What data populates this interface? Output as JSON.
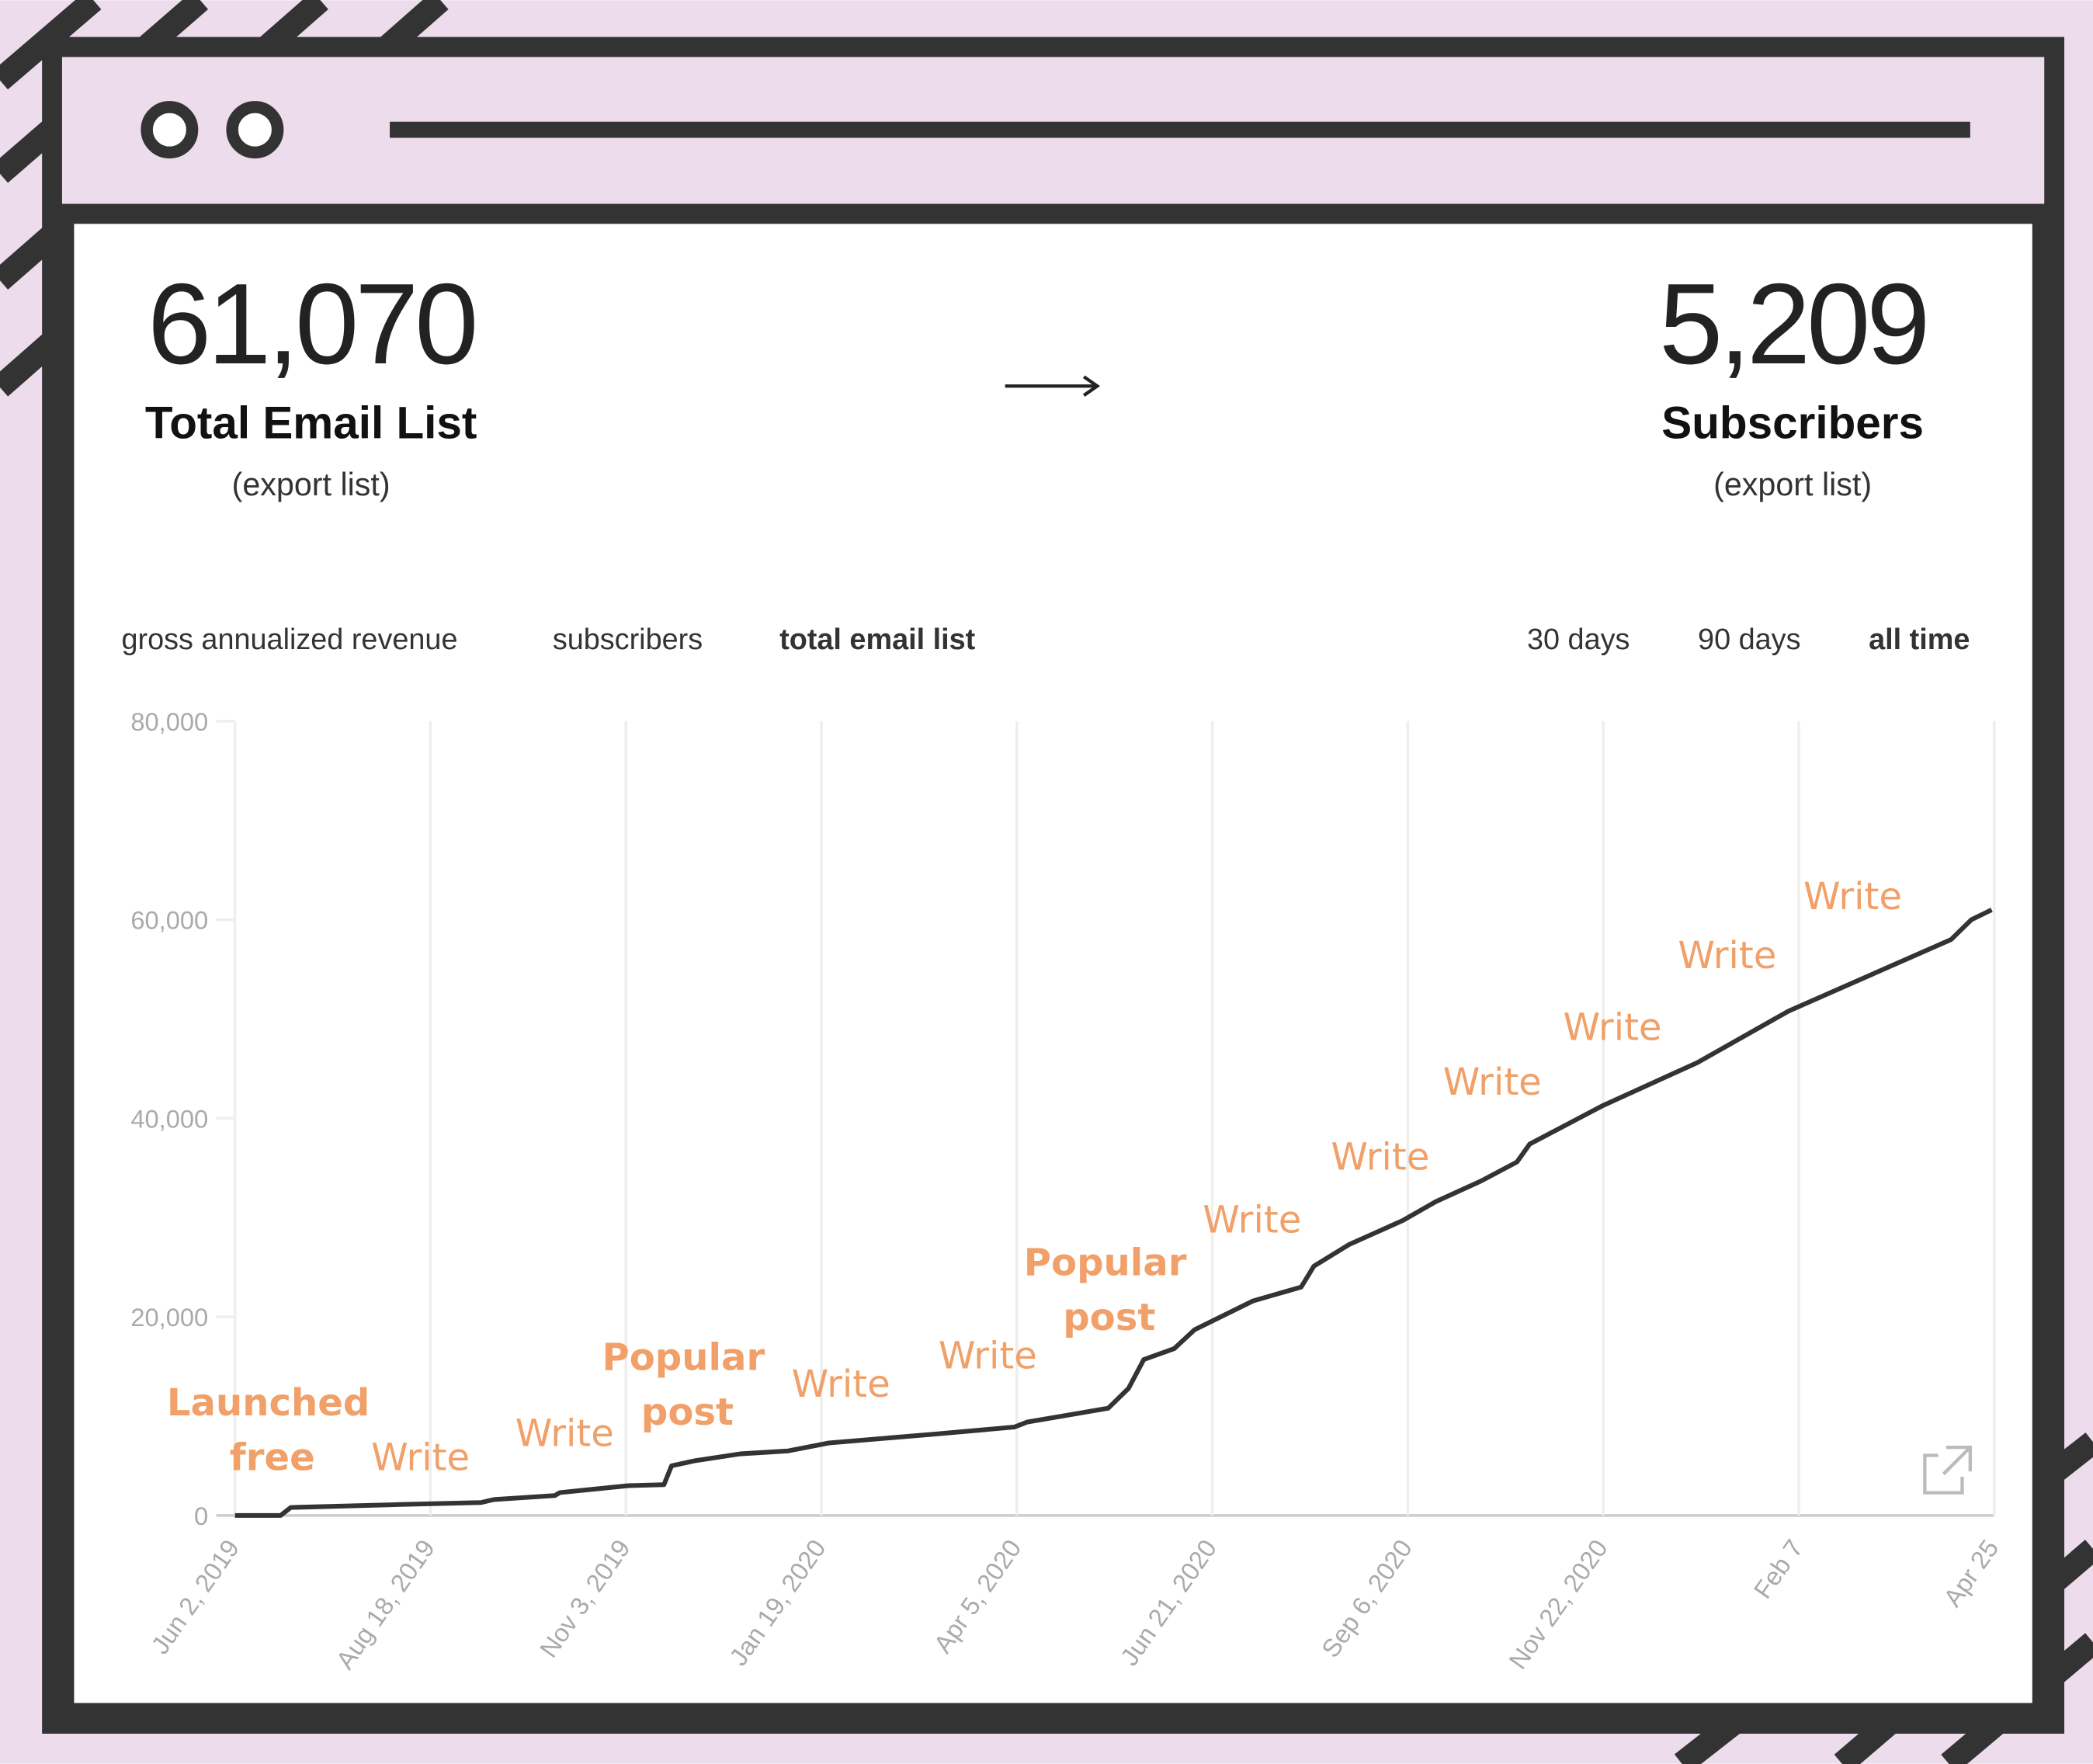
{
  "header": {
    "left": {
      "value": "61,070",
      "label": "Total Email List",
      "link": "(export list)"
    },
    "right": {
      "value": "5,209",
      "label": "Subscribers",
      "link": "(export list)"
    }
  },
  "tabs": {
    "metrics": [
      "gross annualized revenue",
      "subscribers",
      "total email list"
    ],
    "active_metric": 2,
    "ranges": [
      "30 days",
      "90 days",
      "all time"
    ],
    "active_range": 2
  },
  "chart_data": {
    "type": "line",
    "x": [
      "2019-06-02",
      "2019-06-20",
      "2019-06-24",
      "2019-08-06",
      "2019-09-07",
      "2019-09-12",
      "2019-10-06",
      "2019-10-08",
      "2019-11-04",
      "2019-11-18",
      "2019-11-21",
      "2019-11-30",
      "2019-12-18",
      "2020-01-06",
      "2020-01-22",
      "2020-03-04",
      "2020-04-04",
      "2020-04-09",
      "2020-05-11",
      "2020-05-19",
      "2020-05-25",
      "2020-06-06",
      "2020-06-14",
      "2020-07-07",
      "2020-07-26",
      "2020-07-31",
      "2020-08-14",
      "2020-09-04",
      "2020-09-17",
      "2020-10-05",
      "2020-10-19",
      "2020-10-24",
      "2020-11-22",
      "2020-12-29",
      "2021-02-03",
      "2021-04-08",
      "2021-04-16",
      "2021-04-24"
    ],
    "series": [
      {
        "name": "total email list",
        "color": "#333333",
        "values": [
          0,
          0,
          800,
          1100,
          1300,
          1600,
          2000,
          2300,
          3000,
          3100,
          5000,
          5500,
          6200,
          6500,
          7300,
          8200,
          8900,
          9400,
          10800,
          12800,
          15700,
          16800,
          18700,
          21600,
          23000,
          25100,
          27300,
          29700,
          31600,
          33700,
          35600,
          37400,
          41300,
          45600,
          50800,
          58000,
          60000,
          61000
        ]
      }
    ],
    "xlim": [
      "2019-06-02",
      "2021-04-25"
    ],
    "xticks": [
      {
        "value": "2019-06-02",
        "label": "Jun 2, 2019"
      },
      {
        "value": "2019-08-18",
        "label": "Aug 18, 2019"
      },
      {
        "value": "2019-11-03",
        "label": "Nov 3, 2019"
      },
      {
        "value": "2020-01-19",
        "label": "Jan 19, 2020"
      },
      {
        "value": "2020-04-05",
        "label": "Apr 5, 2020"
      },
      {
        "value": "2020-06-21",
        "label": "Jun 21, 2020"
      },
      {
        "value": "2020-09-06",
        "label": "Sep 6, 2020"
      },
      {
        "value": "2020-11-22",
        "label": "Nov 22, 2020"
      },
      {
        "value": "2021-02-07",
        "label": "Feb 7"
      },
      {
        "value": "2021-04-25",
        "label": "Apr 25"
      }
    ],
    "ylim": [
      0,
      80000
    ],
    "yticks": [
      0,
      {
        "value": 20000,
        "label": "20,000"
      },
      {
        "value": 40000,
        "label": "40,000"
      },
      {
        "value": 60000,
        "label": "60,000"
      },
      {
        "value": 80000,
        "label": "80,000"
      }
    ],
    "grid": "x",
    "annotation_color": "#f0a068",
    "annotations": [
      {
        "lines": [
          "Launched",
          "free"
        ],
        "bold": true
      },
      {
        "lines": [
          "Write"
        ],
        "bold": false
      },
      {
        "lines": [
          "Write"
        ],
        "bold": false
      },
      {
        "lines": [
          "Popular",
          "post"
        ],
        "bold": true
      },
      {
        "lines": [
          "Write"
        ],
        "bold": false
      },
      {
        "lines": [
          "Write"
        ],
        "bold": false
      },
      {
        "lines": [
          "Popular",
          "post"
        ],
        "bold": true
      },
      {
        "lines": [
          "Write"
        ],
        "bold": false
      },
      {
        "lines": [
          "Write"
        ],
        "bold": false
      },
      {
        "lines": [
          "Write"
        ],
        "bold": false
      },
      {
        "lines": [
          "Write"
        ],
        "bold": false
      },
      {
        "lines": [
          "Write"
        ],
        "bold": false
      },
      {
        "lines": [
          "Write"
        ],
        "bold": false
      }
    ]
  }
}
